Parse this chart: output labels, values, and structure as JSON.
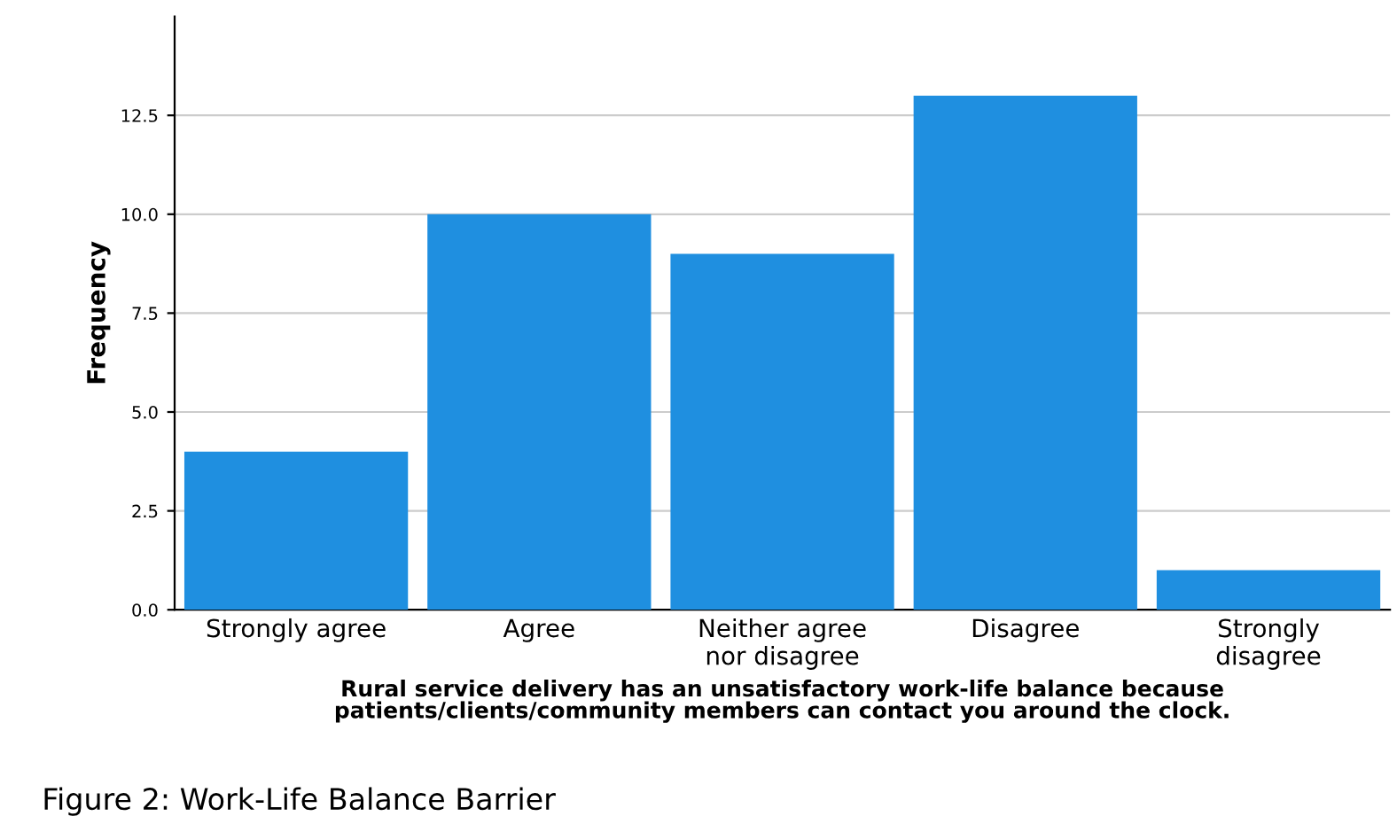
{
  "chart_data": {
    "type": "bar",
    "ylabel": "Frequency",
    "xlabel": "Rural service delivery has an unsatisfactory work-life balance because\npatients/clients/community members can contact you around the clock.",
    "categories": [
      "Strongly agree",
      "Agree",
      "Neither agree\nnor disagree",
      "Disagree",
      "Strongly\ndisagree"
    ],
    "values": [
      4,
      10,
      9,
      13,
      1
    ],
    "color": "#1f8fe0",
    "ylim": [
      0,
      15
    ],
    "yticks": [
      {
        "value": 0,
        "label": "0.0"
      },
      {
        "value": 2.5,
        "label": "2.5"
      },
      {
        "value": 5,
        "label": "5.0"
      },
      {
        "value": 7.5,
        "label": "7.5"
      },
      {
        "value": 10,
        "label": "10.0"
      },
      {
        "value": 12.5,
        "label": "12.5"
      }
    ],
    "grid": "y",
    "legend": false,
    "annotations": [
      "Figure 2: Work-Life Balance Barrier"
    ]
  }
}
